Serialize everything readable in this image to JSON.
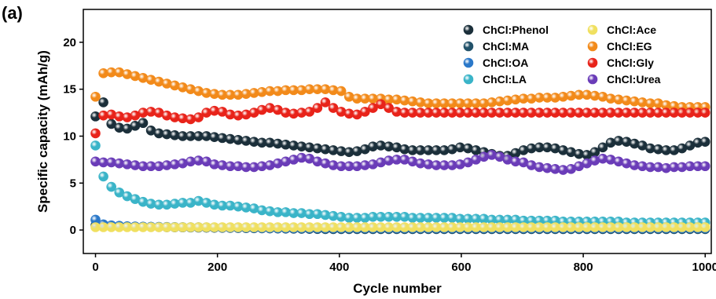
{
  "panel_label": "(a)",
  "chart_data": {
    "type": "scatter",
    "xlabel": "Cycle number",
    "ylabel": "Specific capacity (mAh/g)",
    "xlim": [
      -20,
      1010
    ],
    "ylim": [
      -2.5,
      23.5
    ],
    "xticks": [
      0,
      200,
      400,
      600,
      800,
      1000
    ],
    "yticks": [
      0,
      5,
      10,
      15,
      20
    ],
    "x": [
      0,
      13,
      26,
      39,
      52,
      65,
      78,
      91,
      104,
      117,
      130,
      143,
      156,
      169,
      182,
      195,
      208,
      221,
      234,
      247,
      260,
      273,
      286,
      299,
      312,
      325,
      338,
      351,
      364,
      377,
      390,
      403,
      416,
      429,
      442,
      455,
      468,
      481,
      494,
      507,
      520,
      533,
      546,
      559,
      572,
      585,
      598,
      611,
      624,
      637,
      650,
      663,
      676,
      689,
      702,
      715,
      728,
      741,
      754,
      767,
      780,
      793,
      806,
      819,
      832,
      845,
      858,
      871,
      884,
      897,
      910,
      923,
      936,
      949,
      962,
      975,
      988,
      1000
    ],
    "legend_position": "top-right",
    "series": [
      {
        "name": "ChCl:Phenol",
        "color": "#1b2f3a",
        "values": [
          12.1,
          13.6,
          11.3,
          10.9,
          10.8,
          11.1,
          11.4,
          10.6,
          10.3,
          10.2,
          10.1,
          10.0,
          10.0,
          10.0,
          10.0,
          9.9,
          9.8,
          9.7,
          9.6,
          9.5,
          9.4,
          9.3,
          9.3,
          9.2,
          9.1,
          9.0,
          8.9,
          8.8,
          8.7,
          8.6,
          8.5,
          8.4,
          8.3,
          8.4,
          8.6,
          8.9,
          9.0,
          8.9,
          8.8,
          8.6,
          8.5,
          8.5,
          8.5,
          8.5,
          8.5,
          8.6,
          8.8,
          8.7,
          8.5,
          8.3,
          8.1,
          7.9,
          7.9,
          8.2,
          8.5,
          8.7,
          8.8,
          8.8,
          8.7,
          8.5,
          8.3,
          8.1,
          8.0,
          8.3,
          8.8,
          9.3,
          9.5,
          9.4,
          9.2,
          9.0,
          8.7,
          8.6,
          8.5,
          8.5,
          8.7,
          9.0,
          9.3,
          9.4
        ]
      },
      {
        "name": "ChCl:MA",
        "color": "#22526a",
        "values": [
          0.5,
          0.45,
          0.42,
          0.4,
          0.38,
          0.36,
          0.34,
          0.33,
          0.32,
          0.3,
          0.29,
          0.28,
          0.27,
          0.26,
          0.25,
          0.24,
          0.23,
          0.22,
          0.21,
          0.2,
          0.19,
          0.18,
          0.17,
          0.16,
          0.15,
          0.14,
          0.13,
          0.12,
          0.11,
          0.1,
          0.1,
          0.1,
          0.1,
          0.1,
          0.1,
          0.1,
          0.1,
          0.1,
          0.1,
          0.1,
          0.1,
          0.1,
          0.1,
          0.1,
          0.1,
          0.1,
          0.1,
          0.1,
          0.1,
          0.1,
          0.1,
          0.1,
          0.1,
          0.1,
          0.1,
          0.1,
          0.1,
          0.1,
          0.1,
          0.1,
          0.1,
          0.1,
          0.1,
          0.1,
          0.1,
          0.1,
          0.1,
          0.1,
          0.1,
          0.1,
          0.1,
          0.1,
          0.1,
          0.1,
          0.1,
          0.1,
          0.1,
          0.1
        ]
      },
      {
        "name": "ChCl:OA",
        "color": "#2a78c9",
        "values": [
          1.1,
          0.6,
          0.5,
          0.45,
          0.4,
          0.38,
          0.36,
          0.35,
          0.34,
          0.33,
          0.32,
          0.31,
          0.3,
          0.3,
          0.29,
          0.28,
          0.27,
          0.26,
          0.25,
          0.24,
          0.23,
          0.22,
          0.21,
          0.2,
          0.2,
          0.2,
          0.2,
          0.2,
          0.2,
          0.2,
          0.2,
          0.2,
          0.2,
          0.2,
          0.2,
          0.2,
          0.2,
          0.2,
          0.2,
          0.2,
          0.2,
          0.2,
          0.2,
          0.2,
          0.2,
          0.2,
          0.2,
          0.2,
          0.2,
          0.2,
          0.2,
          0.2,
          0.2,
          0.2,
          0.2,
          0.2,
          0.2,
          0.2,
          0.2,
          0.2,
          0.2,
          0.2,
          0.2,
          0.2,
          0.2,
          0.2,
          0.2,
          0.2,
          0.2,
          0.2,
          0.2,
          0.2,
          0.2,
          0.2,
          0.2,
          0.2,
          0.2,
          0.2
        ]
      },
      {
        "name": "ChCl:LA",
        "color": "#3ab4c8",
        "values": [
          9.0,
          5.7,
          4.6,
          4.0,
          3.6,
          3.3,
          3.0,
          2.8,
          2.7,
          2.7,
          2.8,
          2.9,
          2.9,
          3.1,
          2.9,
          2.7,
          2.6,
          2.6,
          2.5,
          2.4,
          2.3,
          2.1,
          2.0,
          1.9,
          1.9,
          1.8,
          1.8,
          1.7,
          1.7,
          1.6,
          1.5,
          1.4,
          1.3,
          1.3,
          1.3,
          1.4,
          1.4,
          1.4,
          1.4,
          1.4,
          1.3,
          1.3,
          1.3,
          1.3,
          1.3,
          1.3,
          1.2,
          1.2,
          1.2,
          1.2,
          1.1,
          1.1,
          1.1,
          1.1,
          1.0,
          1.0,
          1.0,
          1.0,
          1.0,
          0.9,
          0.9,
          0.9,
          0.9,
          0.9,
          0.9,
          0.9,
          0.9,
          0.8,
          0.8,
          0.8,
          0.8,
          0.8,
          0.8,
          0.8,
          0.8,
          0.8,
          0.8,
          0.8
        ]
      },
      {
        "name": "ChCl:Ace",
        "color": "#f0e060",
        "values": [
          0.3,
          0.3,
          0.3,
          0.3,
          0.3,
          0.3,
          0.3,
          0.3,
          0.3,
          0.3,
          0.3,
          0.3,
          0.3,
          0.3,
          0.3,
          0.3,
          0.3,
          0.3,
          0.3,
          0.3,
          0.3,
          0.3,
          0.3,
          0.3,
          0.3,
          0.3,
          0.3,
          0.3,
          0.3,
          0.3,
          0.3,
          0.3,
          0.3,
          0.3,
          0.3,
          0.3,
          0.3,
          0.3,
          0.3,
          0.3,
          0.3,
          0.3,
          0.3,
          0.3,
          0.3,
          0.3,
          0.3,
          0.3,
          0.3,
          0.3,
          0.3,
          0.3,
          0.3,
          0.3,
          0.3,
          0.3,
          0.3,
          0.3,
          0.3,
          0.3,
          0.3,
          0.3,
          0.3,
          0.3,
          0.3,
          0.3,
          0.3,
          0.3,
          0.3,
          0.3,
          0.3,
          0.3,
          0.3,
          0.3,
          0.3,
          0.3,
          0.3,
          0.3
        ]
      },
      {
        "name": "ChCl:EG",
        "color": "#f28a1a",
        "values": [
          14.2,
          16.7,
          16.8,
          16.8,
          16.6,
          16.4,
          16.2,
          16.0,
          15.8,
          15.6,
          15.4,
          15.2,
          15.0,
          14.8,
          14.6,
          14.5,
          14.4,
          14.4,
          14.4,
          14.5,
          14.6,
          14.7,
          14.8,
          14.8,
          14.9,
          14.9,
          14.9,
          15.0,
          15.0,
          15.0,
          14.9,
          14.8,
          14.2,
          14.0,
          14.0,
          14.0,
          14.0,
          13.9,
          13.9,
          13.8,
          13.7,
          13.6,
          13.5,
          13.5,
          13.5,
          13.5,
          13.5,
          13.5,
          13.5,
          13.5,
          13.6,
          13.7,
          13.8,
          13.9,
          14.0,
          14.0,
          14.1,
          14.1,
          14.1,
          14.2,
          14.3,
          14.4,
          14.4,
          14.3,
          14.2,
          14.0,
          13.9,
          13.8,
          13.7,
          13.6,
          13.5,
          13.5,
          13.3,
          13.2,
          13.1,
          13.1,
          13.1,
          13.1
        ]
      },
      {
        "name": "ChCl:Gly",
        "color": "#e8231a",
        "values": [
          10.3,
          12.2,
          12.3,
          12.1,
          12.0,
          12.2,
          12.5,
          12.6,
          12.5,
          12.2,
          12.0,
          11.9,
          11.8,
          12.0,
          12.5,
          12.7,
          12.6,
          12.3,
          12.2,
          12.3,
          12.5,
          12.8,
          13.0,
          12.8,
          12.5,
          12.4,
          12.5,
          12.6,
          13.0,
          13.6,
          13.0,
          12.6,
          12.4,
          12.3,
          12.6,
          13.0,
          13.4,
          13.0,
          12.6,
          12.5,
          12.5,
          12.5,
          12.5,
          12.5,
          12.5,
          12.5,
          12.5,
          12.5,
          12.5,
          12.5,
          12.5,
          12.5,
          12.5,
          12.5,
          12.5,
          12.5,
          12.5,
          12.5,
          12.5,
          12.5,
          12.5,
          12.5,
          12.5,
          12.5,
          12.5,
          12.5,
          12.5,
          12.5,
          12.5,
          12.5,
          12.5,
          12.5,
          12.5,
          12.5,
          12.5,
          12.5,
          12.5,
          12.5
        ]
      },
      {
        "name": "ChCl:Urea",
        "color": "#6a3cb8",
        "values": [
          7.3,
          7.2,
          7.2,
          7.1,
          7.0,
          6.9,
          6.8,
          6.8,
          6.8,
          6.9,
          7.0,
          7.1,
          7.3,
          7.4,
          7.3,
          7.0,
          6.9,
          6.8,
          6.8,
          6.7,
          6.7,
          6.8,
          6.9,
          7.1,
          7.3,
          7.5,
          7.7,
          7.6,
          7.3,
          7.1,
          6.9,
          6.8,
          6.8,
          6.8,
          6.9,
          7.0,
          7.2,
          7.4,
          7.5,
          7.5,
          7.3,
          7.1,
          7.0,
          6.9,
          6.9,
          6.9,
          7.0,
          7.2,
          7.5,
          7.8,
          8.0,
          7.8,
          7.5,
          7.3,
          7.2,
          6.9,
          6.7,
          6.6,
          6.5,
          6.4,
          6.5,
          6.8,
          7.1,
          7.4,
          7.6,
          7.5,
          7.3,
          7.1,
          6.9,
          6.8,
          6.7,
          6.7,
          6.6,
          6.7,
          6.7,
          6.8,
          6.8,
          6.8
        ]
      }
    ]
  }
}
